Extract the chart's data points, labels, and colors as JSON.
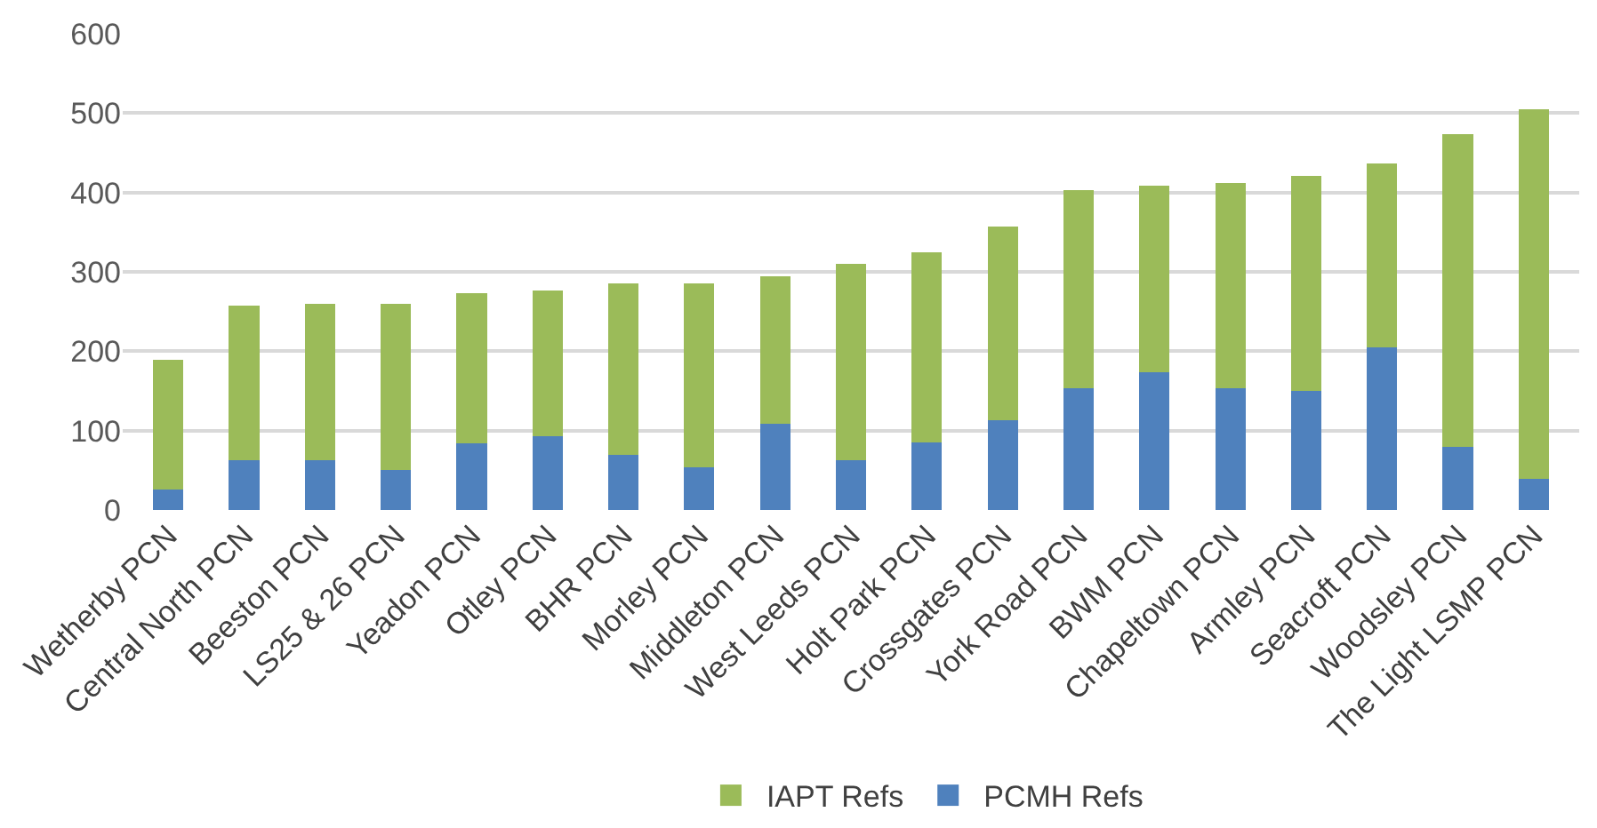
{
  "chart_data": {
    "type": "bar",
    "stacked": true,
    "categories": [
      "Wetherby PCN",
      "Central North PCN",
      "Beeston PCN",
      "LS25 & 26 PCN",
      "Yeadon PCN",
      "Otley PCN",
      "BHR PCN",
      "Morley PCN",
      "Middleton PCN",
      "West Leeds PCN",
      "Holt Park PCN",
      "Crossgates PCN",
      "York Road PCN",
      "BWM PCN",
      "Chapeltown PCN",
      "Armley PCN",
      "Seacroft PCN",
      "Woodsley PCN",
      "The Light LSMP PCN"
    ],
    "series": [
      {
        "name": "PCMH Refs",
        "color": "#4f81bd",
        "values": [
          26,
          63,
          63,
          50,
          84,
          93,
          69,
          54,
          109,
          63,
          85,
          113,
          153,
          174,
          153,
          150,
          205,
          79,
          39
        ]
      },
      {
        "name": "IAPT Refs",
        "color": "#9bbb59",
        "values": [
          163,
          194,
          197,
          210,
          189,
          183,
          216,
          231,
          185,
          247,
          240,
          244,
          250,
          235,
          259,
          271,
          232,
          395,
          466
        ]
      }
    ],
    "ylim": [
      0,
      600
    ],
    "yticks": [
      0,
      100,
      200,
      300,
      400,
      500,
      600
    ],
    "grid": "y",
    "legend": "bottom"
  }
}
